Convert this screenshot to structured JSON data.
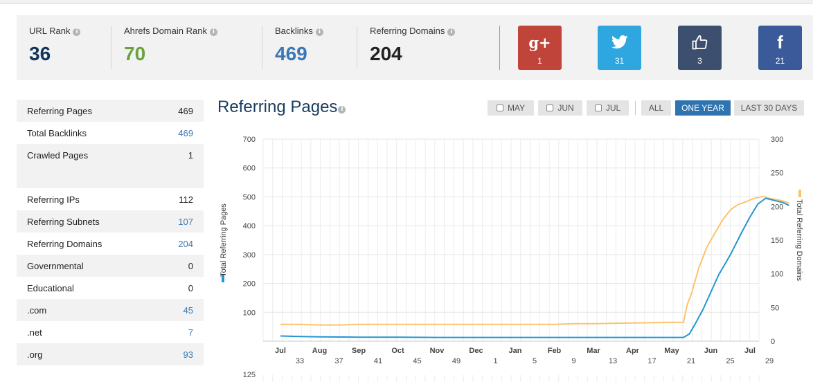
{
  "stats": [
    {
      "label": "URL Rank",
      "value": "36",
      "color": "#12355b"
    },
    {
      "label": "Ahrefs Domain Rank",
      "value": "70",
      "color": "#6aa33d"
    },
    {
      "label": "Backlinks",
      "value": "469",
      "color": "#3a77b4"
    },
    {
      "label": "Referring Domains",
      "value": "204",
      "color": "#222222"
    }
  ],
  "social": [
    {
      "name": "google-plus",
      "icon": "g+",
      "count": "1",
      "color": "#c0443a"
    },
    {
      "name": "twitter",
      "icon": "twitter-bird-icon",
      "count": "31",
      "color": "#2ea6e0"
    },
    {
      "name": "like",
      "icon": "thumbs-up-icon",
      "count": "3",
      "color": "#3d4f6e"
    },
    {
      "name": "facebook",
      "icon": "f",
      "count": "21",
      "color": "#3b5a99"
    }
  ],
  "sidebar": [
    {
      "label": "Referring Pages",
      "value": "469",
      "link": false
    },
    {
      "label": "Total Backlinks",
      "value": "469",
      "link": true
    },
    {
      "label": "Crawled Pages",
      "value": "1",
      "link": false
    },
    {
      "label": "",
      "value": "",
      "link": false
    },
    {
      "label": "Referring IPs",
      "value": "112",
      "link": false
    },
    {
      "label": "Referring Subnets",
      "value": "107",
      "link": true
    },
    {
      "label": "Referring Domains",
      "value": "204",
      "link": true
    },
    {
      "label": "Governmental",
      "value": "0",
      "link": false
    },
    {
      "label": "Educational",
      "value": "0",
      "link": false
    },
    {
      "label": ".com",
      "value": "45",
      "link": true
    },
    {
      "label": ".net",
      "value": "7",
      "link": true
    },
    {
      "label": ".org",
      "value": "93",
      "link": true
    }
  ],
  "chart_title": "Referring Pages",
  "buttons": [
    {
      "label": "MAY",
      "checkbox": true,
      "active": false
    },
    {
      "label": "JUN",
      "checkbox": true,
      "active": false
    },
    {
      "label": "JUL",
      "checkbox": true,
      "active": false
    },
    {
      "label": "ALL",
      "checkbox": false,
      "active": false
    },
    {
      "label": "ONE YEAR",
      "checkbox": false,
      "active": true
    },
    {
      "label": "LAST 30 DAYS",
      "checkbox": false,
      "active": false
    }
  ],
  "chart_data": {
    "type": "line",
    "ylabel": "Total Referring Pages",
    "y2label": "Total Referring Domains",
    "ylim": [
      0,
      700
    ],
    "yticks": [
      "700",
      "600",
      "500",
      "400",
      "300",
      "200",
      "100"
    ],
    "y2lim": [
      0,
      300
    ],
    "y2ticks": [
      "300",
      "250",
      "200",
      "150",
      "100",
      "50",
      "0"
    ],
    "next_axis_tick": "125",
    "months": [
      "Jul",
      "Aug",
      "Sep",
      "Oct",
      "Nov",
      "Dec",
      "Jan",
      "Feb",
      "Mar",
      "Apr",
      "May",
      "Jun",
      "Jul"
    ],
    "weeks": [
      "33",
      "37",
      "41",
      "45",
      "49",
      "1",
      "5",
      "9",
      "13",
      "17",
      "21",
      "25",
      "29"
    ],
    "grid": true,
    "series": [
      {
        "name": "Total Referring Pages",
        "axis": "left",
        "color": "#2196d3",
        "t": [
          0,
          0.5,
          1,
          2,
          3,
          4,
          5,
          6,
          7,
          8,
          9,
          10,
          10.3,
          10.45,
          10.6,
          10.8,
          11.0,
          11.2,
          11.5,
          11.8,
          12.0,
          12.2,
          12.4,
          12.7,
          12.85,
          13.0
        ],
        "values": [
          18,
          16,
          15,
          14,
          14,
          13,
          13,
          13,
          13,
          13,
          13,
          13,
          13,
          25,
          60,
          110,
          170,
          230,
          300,
          380,
          430,
          475,
          495,
          485,
          480,
          470
        ]
      },
      {
        "name": "Total Referring Domains",
        "axis": "right",
        "color": "#fcc36b",
        "t": [
          0,
          0.5,
          1,
          1.5,
          2,
          3,
          4,
          5,
          6,
          7,
          7.5,
          8,
          9,
          10,
          10.3,
          10.4,
          10.5,
          10.7,
          10.9,
          11.1,
          11.3,
          11.5,
          11.7,
          11.9,
          12.1,
          12.35,
          12.5,
          12.7,
          12.85,
          13.0
        ],
        "values": [
          25,
          25,
          24,
          24,
          25,
          25,
          25,
          25,
          25,
          25,
          26,
          26,
          27,
          28,
          28,
          55,
          70,
          110,
          140,
          160,
          180,
          195,
          203,
          207,
          212,
          215,
          212,
          210,
          208,
          205
        ]
      }
    ]
  }
}
